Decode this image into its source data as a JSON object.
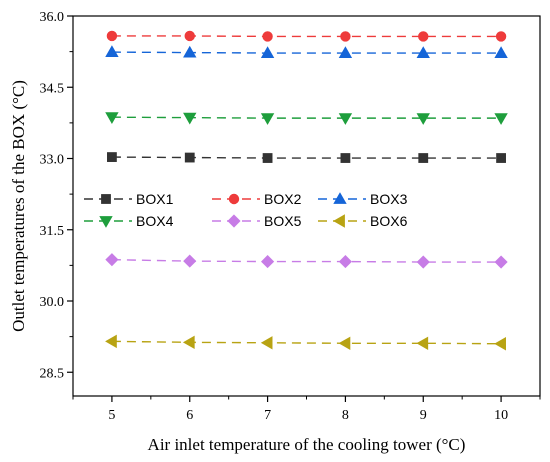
{
  "chart_data": {
    "type": "line",
    "title": "",
    "xlabel": "Air inlet temperature of the cooling tower (°C)",
    "ylabel": "Outlet temperatures of the BOX (°C)",
    "x": [
      5,
      6,
      7,
      8,
      9,
      10
    ],
    "xlim": [
      4.5,
      10.5
    ],
    "ylim": [
      28.0,
      36.0
    ],
    "xticks": [
      "5",
      "6",
      "7",
      "8",
      "9",
      "10"
    ],
    "yticks": [
      "28.5",
      "30.0",
      "31.5",
      "33.0",
      "34.5",
      "36.0"
    ],
    "grid": false,
    "legend_position": "center-left",
    "series": [
      {
        "name": "BOX1",
        "values": [
          33.03,
          33.02,
          33.01,
          33.01,
          33.01,
          33.01
        ],
        "color": "#333333",
        "marker": "square"
      },
      {
        "name": "BOX2",
        "values": [
          35.58,
          35.58,
          35.57,
          35.57,
          35.57,
          35.57
        ],
        "color": "#ee3b3b",
        "marker": "circle"
      },
      {
        "name": "BOX3",
        "values": [
          35.24,
          35.23,
          35.22,
          35.22,
          35.22,
          35.22
        ],
        "color": "#1565d8",
        "marker": "triangle-up"
      },
      {
        "name": "BOX4",
        "values": [
          33.87,
          33.86,
          33.85,
          33.85,
          33.85,
          33.85
        ],
        "color": "#1e9e3c",
        "marker": "triangle-down"
      },
      {
        "name": "BOX5",
        "values": [
          30.87,
          30.84,
          30.83,
          30.83,
          30.82,
          30.82
        ],
        "color": "#c77ce6",
        "marker": "diamond"
      },
      {
        "name": "BOX6",
        "values": [
          29.15,
          29.13,
          29.12,
          29.11,
          29.11,
          29.1
        ],
        "color": "#b8a313",
        "marker": "triangle-left"
      }
    ]
  }
}
